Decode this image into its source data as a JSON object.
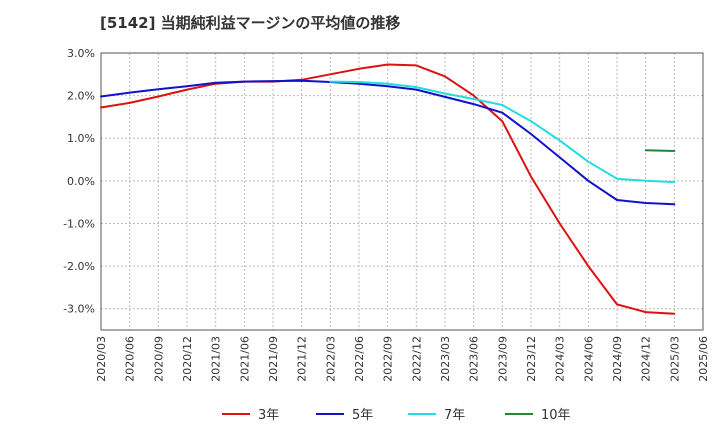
{
  "chart_data": {
    "type": "line",
    "title": "[5142]  当期純利益マージンの平均値の推移",
    "xlabel": "",
    "ylabel": "",
    "x": [
      "2020/03",
      "2020/06",
      "2020/09",
      "2020/12",
      "2021/03",
      "2021/06",
      "2021/09",
      "2021/12",
      "2022/03",
      "2022/06",
      "2022/09",
      "2022/12",
      "2023/03",
      "2023/06",
      "2023/09",
      "2023/12",
      "2024/03",
      "2024/06",
      "2024/09",
      "2024/12",
      "2025/03",
      "2025/06"
    ],
    "ylim": [
      -3.5,
      3.0
    ],
    "yticks": [
      3.0,
      2.0,
      1.0,
      0.0,
      -1.0,
      -2.0,
      -3.0
    ],
    "ytick_labels": [
      "3.0%",
      "2.0%",
      "1.0%",
      "0.0%",
      "-1.0%",
      "-2.0%",
      "-3.0%"
    ],
    "grid": true,
    "legend_position": "bottom",
    "series": [
      {
        "name": "3年",
        "color": "#dd1111",
        "values": [
          1.72,
          1.83,
          1.98,
          2.14,
          2.28,
          2.33,
          2.33,
          2.37,
          2.5,
          2.63,
          2.73,
          2.71,
          2.45,
          2.0,
          1.4,
          0.1,
          -1.0,
          -2.0,
          -2.9,
          -3.08,
          -3.12,
          null
        ]
      },
      {
        "name": "5年",
        "color": "#1111cc",
        "values": [
          1.98,
          2.07,
          2.15,
          2.22,
          2.3,
          2.33,
          2.34,
          2.35,
          2.32,
          2.28,
          2.22,
          2.14,
          1.97,
          1.8,
          1.6,
          1.1,
          0.55,
          0.0,
          -0.45,
          -0.52,
          -0.55,
          null
        ]
      },
      {
        "name": "7年",
        "color": "#22dddd",
        "values": [
          null,
          null,
          null,
          null,
          null,
          null,
          null,
          null,
          2.33,
          2.32,
          2.28,
          2.2,
          2.05,
          1.92,
          1.78,
          1.4,
          0.95,
          0.45,
          0.05,
          0.0,
          -0.03,
          null
        ]
      },
      {
        "name": "10年",
        "color": "#228833",
        "values": [
          null,
          null,
          null,
          null,
          null,
          null,
          null,
          null,
          null,
          null,
          null,
          null,
          null,
          null,
          null,
          null,
          null,
          null,
          null,
          0.72,
          0.7,
          null
        ]
      }
    ]
  }
}
